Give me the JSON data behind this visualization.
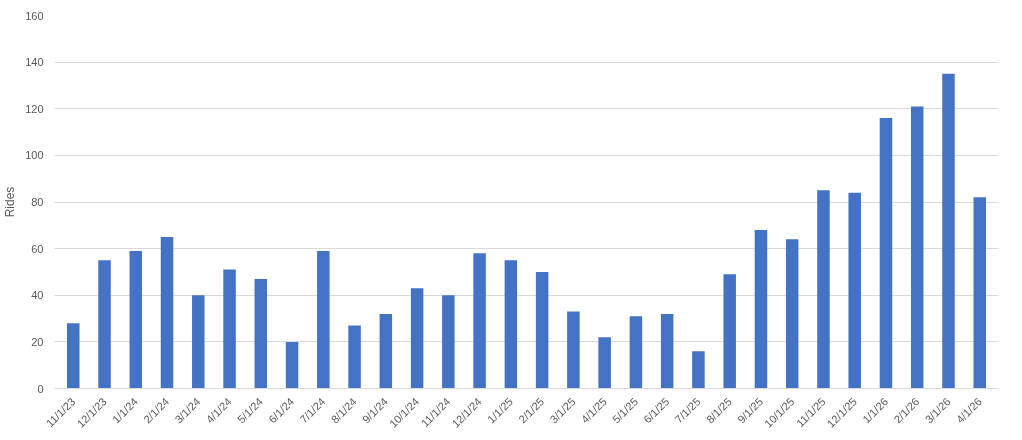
{
  "chart_data": {
    "type": "bar",
    "ylabel": "Rides",
    "categories": [
      "11/1/23",
      "12/1/23",
      "1/1/24",
      "2/1/24",
      "3/1/24",
      "4/1/24",
      "5/1/24",
      "6/1/24",
      "7/1/24",
      "8/1/24",
      "9/1/24",
      "10/1/24",
      "11/1/24",
      "12/1/24",
      "1/1/25",
      "2/1/25",
      "3/1/25",
      "4/1/25",
      "5/1/25",
      "6/1/25",
      "7/1/25",
      "8/1/25",
      "9/1/25",
      "10/1/25",
      "11/1/25",
      "12/1/25",
      "1/1/26",
      "2/1/26",
      "3/1/26",
      "4/1/26"
    ],
    "values": [
      28,
      55,
      59,
      65,
      40,
      51,
      47,
      20,
      59,
      27,
      32,
      43,
      40,
      58,
      55,
      50,
      33,
      22,
      31,
      32,
      16,
      49,
      68,
      64,
      85,
      84,
      116,
      121,
      135,
      82
    ],
    "color": "#4472c4",
    "ylim": [
      0,
      160
    ],
    "yticks": [
      0,
      20,
      40,
      60,
      80,
      100,
      120,
      140,
      160
    ],
    "grid": "y"
  }
}
